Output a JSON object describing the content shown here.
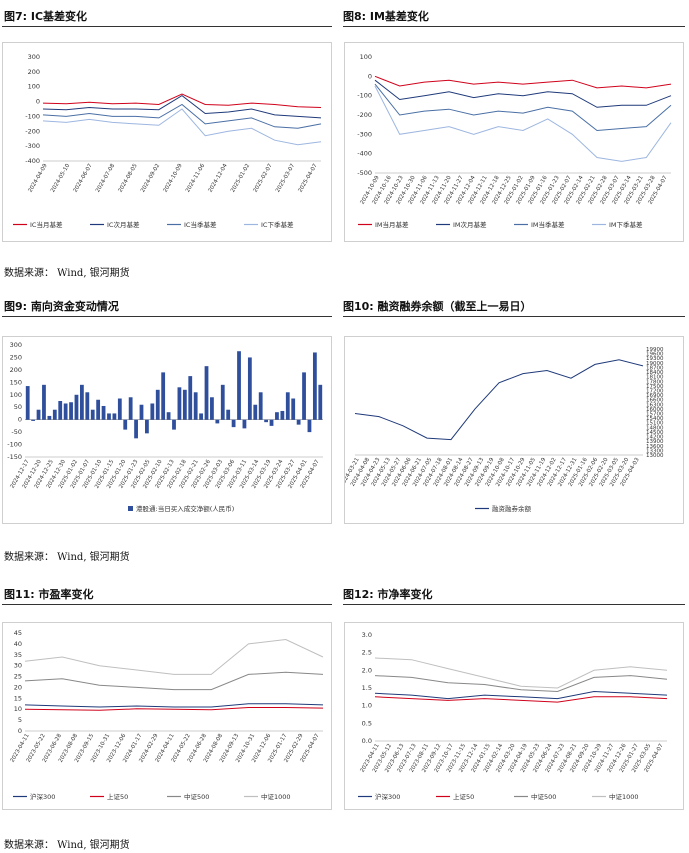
{
  "source_text": "数据来源： Wind, 银河期货",
  "figures": [
    {
      "title": "图7: IC基差变化",
      "y_ticks": [
        "300",
        "200",
        "100",
        "0",
        "-100",
        "-200",
        "-300",
        "-400"
      ],
      "x_ticks": [
        "2024-04-09",
        "2024-05-10",
        "2024-06-07",
        "2024-07-08",
        "2024-08-05",
        "2024-09-02",
        "2024-10-09",
        "2024-11-06",
        "2024-12-04",
        "2025-01-02",
        "2025-02-07",
        "2025-03-07",
        "2025-04-07"
      ],
      "legend": [
        "IC当月基差",
        "IC次月基差",
        "IC当季基差",
        "IC下季基差"
      ]
    },
    {
      "title": "图8: IM基差变化",
      "y_ticks": [
        "100",
        "0",
        "-100",
        "-200",
        "-300",
        "-400",
        "-500"
      ],
      "x_ticks": [
        "2024-10-09",
        "2024-10-16",
        "2024-10-23",
        "2024-10-30",
        "2024-11-06",
        "2024-11-13",
        "2024-11-20",
        "2024-11-27",
        "2024-12-04",
        "2024-12-11",
        "2024-12-18",
        "2024-12-25",
        "2025-01-02",
        "2025-01-09",
        "2025-01-16",
        "2025-01-23",
        "2025-02-07",
        "2025-02-14",
        "2025-02-21",
        "2025-02-28",
        "2025-03-07",
        "2025-03-14",
        "2025-03-21",
        "2025-03-28",
        "2025-04-07"
      ],
      "legend": [
        "IM当月基差",
        "IM次月基差",
        "IM当季基差",
        "IM下季基差"
      ]
    },
    {
      "title": "图9: 南向资金变动情况",
      "y_ticks": [
        "300",
        "250",
        "200",
        "150",
        "100",
        "50",
        "0",
        "-50",
        "-100",
        "-150"
      ],
      "x_ticks": [
        "2024-12-17",
        "2024-12-20",
        "2024-12-25",
        "2024-12-30",
        "2025-01-02",
        "2025-01-07",
        "2025-01-10",
        "2025-01-15",
        "2025-01-20",
        "2025-01-23",
        "2025-02-05",
        "2025-02-10",
        "2025-02-13",
        "2025-02-18",
        "2025-02-21",
        "2025-02-26",
        "2025-03-03",
        "2025-03-06",
        "2025-03-11",
        "2025-03-14",
        "2025-03-19",
        "2025-03-24",
        "2025-03-27",
        "2025-04-01",
        "2025-04-07"
      ],
      "legend": [
        "港股通:当日买入成交净额(人民币)"
      ]
    },
    {
      "title": "图10: 融资融券余额（截至上一易日）",
      "y_ticks": [
        "19900",
        "19600",
        "19300",
        "19000",
        "18700",
        "18400",
        "18100",
        "17800",
        "17500",
        "17200",
        "16900",
        "16600",
        "16300",
        "16000",
        "15700",
        "15400",
        "15100",
        "14800",
        "14500",
        "14200",
        "13900",
        "13600",
        "13300",
        "13000"
      ],
      "x_ticks": [
        "2024-03-21",
        "2024-04-08",
        "2024-04-23",
        "2024-05-13",
        "2024-05-27",
        "2024-06-06",
        "2024-06-21",
        "2024-07-05",
        "2024-07-18",
        "2024-08-01",
        "2024-08-14",
        "2024-08-27",
        "2024-09-13",
        "2024-09-19",
        "2024-10-08",
        "2024-10-17",
        "2024-10-29",
        "2024-11-05",
        "2024-11-19",
        "2024-12-02",
        "2024-12-17",
        "2024-12-31",
        "2025-01-16",
        "2025-02-06",
        "2025-02-20",
        "2025-03-05",
        "2025-03-20",
        "2025-04-03"
      ],
      "legend": [
        "融资融券余额"
      ]
    },
    {
      "title": "图11: 市盈率变化",
      "y_ticks": [
        "45",
        "40",
        "35",
        "30",
        "25",
        "20",
        "15",
        "10",
        "5",
        "0"
      ],
      "x_ticks": [
        "2023-04-11",
        "2023-05-22",
        "2023-06-28",
        "2023-08-08",
        "2023-09-15",
        "2023-10-31",
        "2023-12-06",
        "2024-01-17",
        "2024-02-29",
        "2024-04-11",
        "2024-05-22",
        "2024-06-28",
        "2024-08-08",
        "2024-09-13",
        "2024-10-31",
        "2024-12-06",
        "2025-01-17",
        "2025-02-29",
        "2025-04-07"
      ],
      "legend": [
        "沪深300",
        "上证50",
        "中证500",
        "中证1000"
      ]
    },
    {
      "title": "图12: 市净率变化",
      "y_ticks": [
        "3.0",
        "2.5",
        "2.0",
        "1.5",
        "1.0",
        "0.5",
        "0.0"
      ],
      "x_ticks": [
        "2023-04-11",
        "2023-05-12",
        "2023-06-13",
        "2023-07-13",
        "2023-08-11",
        "2023-09-12",
        "2023-10-17",
        "2023-11-15",
        "2023-12-14",
        "2024-01-15",
        "2024-02-14",
        "2024-03-20",
        "2024-04-19",
        "2024-05-23",
        "2024-06-24",
        "2024-07-23",
        "2024-08-21",
        "2024-09-20",
        "2024-10-29",
        "2024-11-27",
        "2024-12-26",
        "2025-01-27",
        "2025-03-05",
        "2025-04-07"
      ],
      "legend": [
        "沪深300",
        "上证50",
        "中证500",
        "中证1000"
      ]
    }
  ],
  "colors": {
    "red": "#d0021b",
    "navy": "#1f3a7a",
    "blue": "#4a6fa5",
    "lightblue": "#9db6e0",
    "bar": "#2f4f9c",
    "gray": "#888888",
    "lightgray": "#bfbfbf"
  },
  "chart_data": [
    {
      "type": "line",
      "title": "IC基差变化",
      "ylim": [
        -400,
        300
      ],
      "x": [
        "2024-04-09",
        "2024-05-10",
        "2024-06-07",
        "2024-07-08",
        "2024-08-05",
        "2024-09-02",
        "2024-10-09",
        "2024-11-06",
        "2024-12-04",
        "2025-01-02",
        "2025-02-07",
        "2025-03-07",
        "2025-04-07"
      ],
      "series": [
        {
          "name": "IC当月基差",
          "values": [
            -10,
            -15,
            -5,
            -15,
            -10,
            -20,
            50,
            -20,
            -25,
            -10,
            -20,
            -35,
            -40
          ]
        },
        {
          "name": "IC次月基差",
          "values": [
            -50,
            -55,
            -40,
            -50,
            -50,
            -55,
            40,
            -80,
            -70,
            -50,
            -90,
            -100,
            -110
          ]
        },
        {
          "name": "IC当季基差",
          "values": [
            -90,
            -100,
            -80,
            -100,
            -100,
            -110,
            -20,
            -150,
            -130,
            -110,
            -170,
            -180,
            -150
          ]
        },
        {
          "name": "IC下季基差",
          "values": [
            -130,
            -140,
            -120,
            -140,
            -150,
            -160,
            -50,
            -230,
            -200,
            -180,
            -260,
            -290,
            -270
          ]
        }
      ]
    },
    {
      "type": "line",
      "title": "IM基差变化",
      "ylim": [
        -500,
        100
      ],
      "x": [
        "2024-10-09",
        "2024-10-23",
        "2024-11-06",
        "2024-11-20",
        "2024-12-04",
        "2024-12-18",
        "2025-01-02",
        "2025-01-16",
        "2025-02-07",
        "2025-02-21",
        "2025-03-07",
        "2025-03-21",
        "2025-04-07"
      ],
      "series": [
        {
          "name": "IM当月基差",
          "values": [
            0,
            -50,
            -30,
            -20,
            -40,
            -30,
            -40,
            -30,
            -20,
            -60,
            -50,
            -60,
            -40
          ]
        },
        {
          "name": "IM次月基差",
          "values": [
            -20,
            -120,
            -100,
            -80,
            -110,
            -90,
            -100,
            -80,
            -90,
            -160,
            -150,
            -150,
            -100
          ]
        },
        {
          "name": "IM当季基差",
          "values": [
            -40,
            -200,
            -180,
            -170,
            -200,
            -180,
            -190,
            -160,
            -180,
            -280,
            -270,
            -260,
            -150
          ]
        },
        {
          "name": "IM下季基差",
          "values": [
            -50,
            -300,
            -280,
            -260,
            -300,
            -260,
            -280,
            -220,
            -300,
            -420,
            -440,
            -420,
            -240
          ]
        }
      ]
    },
    {
      "type": "bar",
      "title": "南向资金变动情况",
      "ylim": [
        -150,
        300
      ],
      "values": [
        135,
        -5,
        40,
        140,
        15,
        40,
        75,
        65,
        70,
        100,
        140,
        110,
        40,
        80,
        55,
        25,
        25,
        85,
        -40,
        90,
        -75,
        60,
        -55,
        65,
        120,
        190,
        30,
        -40,
        130,
        120,
        175,
        110,
        25,
        215,
        90,
        -15,
        140,
        40,
        -30,
        275,
        -35,
        250,
        60,
        110,
        -10,
        -25,
        30,
        35,
        110,
        85,
        -20,
        190,
        -50,
        270,
        140
      ]
    },
    {
      "type": "line",
      "title": "融资融券余额（截至上一易日）",
      "ylim": [
        13000,
        19900
      ],
      "x": [
        "2024-03-21",
        "2024-05-27",
        "2024-07-18",
        "2024-09-13",
        "2024-09-19",
        "2024-10-08",
        "2024-10-29",
        "2024-11-19",
        "2024-12-17",
        "2025-01-16",
        "2025-02-20",
        "2025-03-20",
        "2025-04-03"
      ],
      "series": [
        {
          "name": "融资融券余额",
          "values": [
            15700,
            15500,
            14900,
            14100,
            14000,
            16000,
            17700,
            18300,
            18500,
            18000,
            18900,
            19200,
            18800
          ]
        }
      ]
    },
    {
      "type": "line",
      "title": "市盈率变化",
      "ylim": [
        0,
        45
      ],
      "x": [
        "2023-04-11",
        "2023-08-08",
        "2023-12-06",
        "2024-04-11",
        "2024-08-08",
        "2024-09-13",
        "2024-10-31",
        "2025-01-17",
        "2025-04-07"
      ],
      "series": [
        {
          "name": "沪深300",
          "values": [
            12,
            11.5,
            11,
            11.5,
            11,
            11,
            12.5,
            12.5,
            12
          ]
        },
        {
          "name": "上证50",
          "values": [
            10,
            9.8,
            9.5,
            10.2,
            10,
            9.8,
            10.8,
            10.8,
            10.5
          ]
        },
        {
          "name": "中证500",
          "values": [
            23,
            24,
            21,
            20,
            19,
            19,
            26,
            27,
            26
          ]
        },
        {
          "name": "中证1000",
          "values": [
            32,
            34,
            30,
            28,
            26,
            26,
            40,
            42,
            34
          ]
        }
      ]
    },
    {
      "type": "line",
      "title": "市净率变化",
      "ylim": [
        0,
        3
      ],
      "x": [
        "2023-04-11",
        "2023-08-11",
        "2023-12-14",
        "2024-04-19",
        "2024-08-21",
        "2024-09-20",
        "2024-10-29",
        "2025-01-27",
        "2025-04-07"
      ],
      "series": [
        {
          "name": "沪深300",
          "values": [
            1.35,
            1.3,
            1.2,
            1.3,
            1.25,
            1.2,
            1.4,
            1.35,
            1.3
          ]
        },
        {
          "name": "上证50",
          "values": [
            1.25,
            1.2,
            1.15,
            1.2,
            1.15,
            1.1,
            1.25,
            1.25,
            1.2
          ]
        },
        {
          "name": "中证500",
          "values": [
            1.85,
            1.8,
            1.65,
            1.6,
            1.45,
            1.4,
            1.8,
            1.85,
            1.75
          ]
        },
        {
          "name": "中证1000",
          "values": [
            2.35,
            2.3,
            2.05,
            1.8,
            1.55,
            1.5,
            2.0,
            2.1,
            2.0
          ]
        }
      ]
    }
  ]
}
